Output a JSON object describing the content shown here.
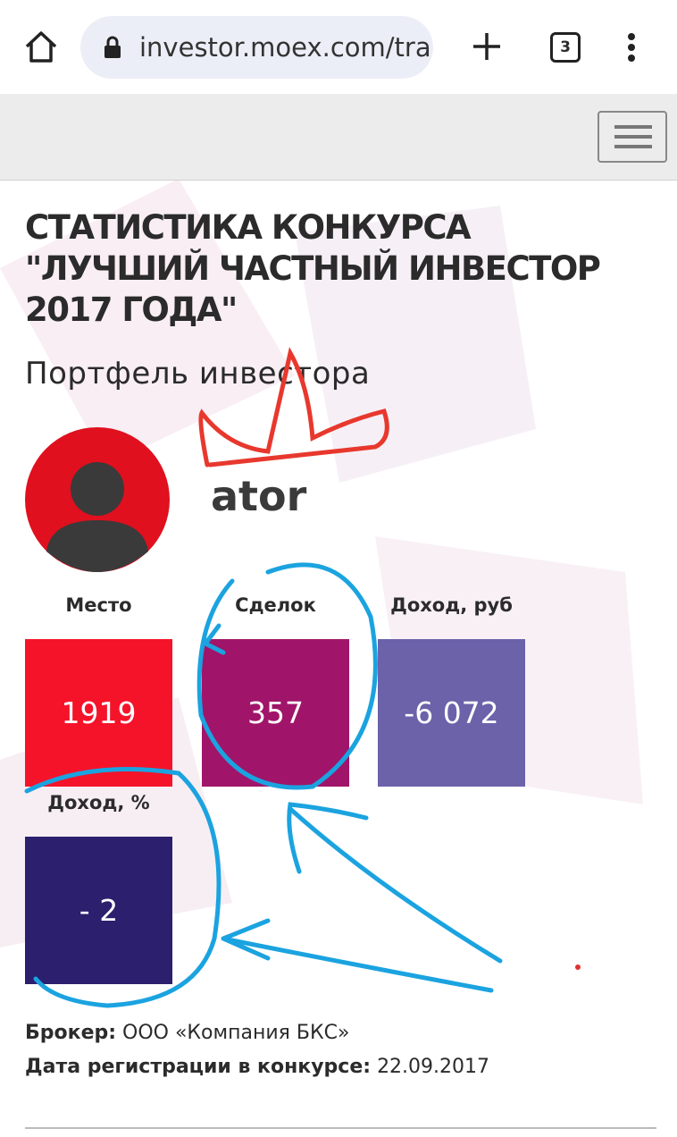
{
  "browser": {
    "url": "investor.moex.com/tra",
    "tab_count": "3"
  },
  "header": {
    "title": "СТАТИСТИКА КОНКУРСА \"ЛУЧШИЙ ЧАСТНЫЙ ИНВЕСТОР 2017 ГОДА\""
  },
  "portfolio": {
    "heading": "Портфель инвестора",
    "username": "ator",
    "stats": [
      {
        "label": "Место",
        "value": "1919",
        "color": "#f5132a"
      },
      {
        "label": "Сделок",
        "value": "357",
        "color": "#a0156a"
      },
      {
        "label": "Доход, руб",
        "value": "-6 072",
        "color": "#6b62aa"
      },
      {
        "label": "Доход, %",
        "value": "- 2",
        "color": "#2b1f6e"
      }
    ]
  },
  "details": [
    {
      "label": "Брокер:",
      "value": "ООО «Компания БКС»"
    },
    {
      "label": "Дата регистрации в конкурсе:",
      "value": "22.09.2017"
    }
  ]
}
